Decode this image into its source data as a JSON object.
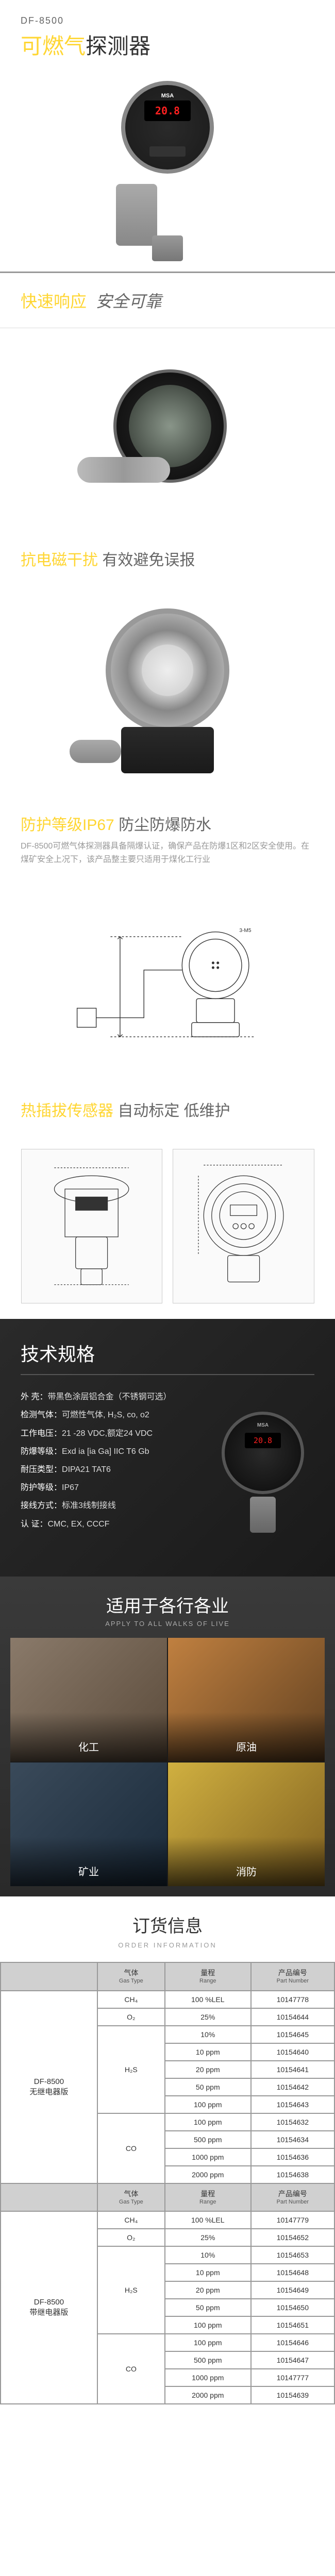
{
  "header": {
    "model": "DF-8500",
    "title_prefix": "可燃气",
    "title_suffix": "探测器",
    "display_value": "20.8"
  },
  "slogan1": {
    "yellow": "快速响应",
    "gray": "安全可靠"
  },
  "feature2": {
    "yellow": "抗电磁干扰",
    "gray": "有效避免误报"
  },
  "feature3": {
    "yellow": "防护等级IP67",
    "gray": "防尘防爆防水",
    "sub": "DF-8500可燃气体探测器具备隔爆认证，确保产品在防爆1区和2区安全使用。在煤矿安全上况下，该产品整主要只适用于煤化工行业"
  },
  "feature4": {
    "yellow": "热插拔传感器",
    "gray": "自动标定 低维护"
  },
  "specs": {
    "title": "技术规格",
    "items": [
      {
        "label": "外    壳：",
        "value": "带黑色涂层铝合金（不锈钢可选）"
      },
      {
        "label": "检测气体：",
        "value": "可燃性气体, H₂S, co, o2"
      },
      {
        "label": "工作电压：",
        "value": "21 -28 VDC,额定24 VDC"
      },
      {
        "label": "防爆等级：",
        "value": "Exd ia  [ia Ga] IIC T6 Gb"
      },
      {
        "label": "耐压类型：",
        "value": "DIPA21 TAT6"
      },
      {
        "label": "防护等级：",
        "value": "IP67"
      },
      {
        "label": "接线方式：",
        "value": "标准3线制接线"
      },
      {
        "label": "认      证：",
        "value": "CMC, EX, CCCF"
      }
    ]
  },
  "apply": {
    "title": "适用于各行各业",
    "sub": "APPLY TO  ALL WALKS OF LIVE",
    "items": [
      "化工",
      "原油",
      "矿业",
      "消防"
    ]
  },
  "order": {
    "title": "订货信息",
    "sub": "ORDER INFORMATION",
    "headers": {
      "gas": "气体",
      "gas_en": "Gas Type",
      "range": "量程",
      "range_en": "Range",
      "pn": "产品编号",
      "pn_en": "Part Number"
    },
    "groups": [
      {
        "name": "DF-8500\n无继电器版",
        "rows": [
          {
            "gas": "CH₄",
            "range": "100 %LEL",
            "pn": "10147778"
          },
          {
            "gas": "O₂",
            "range": "25%",
            "pn": "10154644"
          },
          {
            "gas": "H₂S",
            "rows": [
              {
                "range": "10%",
                "pn": "10154645"
              },
              {
                "range": "10 ppm",
                "pn": "10154640"
              },
              {
                "range": "20 ppm",
                "pn": "10154641"
              },
              {
                "range": "50 ppm",
                "pn": "10154642"
              },
              {
                "range": "100 ppm",
                "pn": "10154643"
              }
            ]
          },
          {
            "gas": "CO",
            "rows": [
              {
                "range": "100 ppm",
                "pn": "10154632"
              },
              {
                "range": "500 ppm",
                "pn": "10154634"
              },
              {
                "range": "1000 ppm",
                "pn": "10154636"
              },
              {
                "range": "2000 ppm",
                "pn": "10154638"
              }
            ]
          }
        ]
      },
      {
        "name": "DF-8500\n带继电器版",
        "rows": [
          {
            "gas": "CH₄",
            "range": "100 %LEL",
            "pn": "10147779"
          },
          {
            "gas": "O₂",
            "range": "25%",
            "pn": "10154652"
          },
          {
            "gas": "H₂S",
            "rows": [
              {
                "range": "10%",
                "pn": "10154653"
              },
              {
                "range": "10 ppm",
                "pn": "10154648"
              },
              {
                "range": "20 ppm",
                "pn": "10154649"
              },
              {
                "range": "50 ppm",
                "pn": "10154650"
              },
              {
                "range": "100 ppm",
                "pn": "10154651"
              }
            ]
          },
          {
            "gas": "CO",
            "rows": [
              {
                "range": "100 ppm",
                "pn": "10154646"
              },
              {
                "range": "500 ppm",
                "pn": "10154647"
              },
              {
                "range": "1000 ppm",
                "pn": "10147777"
              },
              {
                "range": "2000 ppm",
                "pn": "10154639"
              }
            ]
          }
        ]
      }
    ]
  }
}
